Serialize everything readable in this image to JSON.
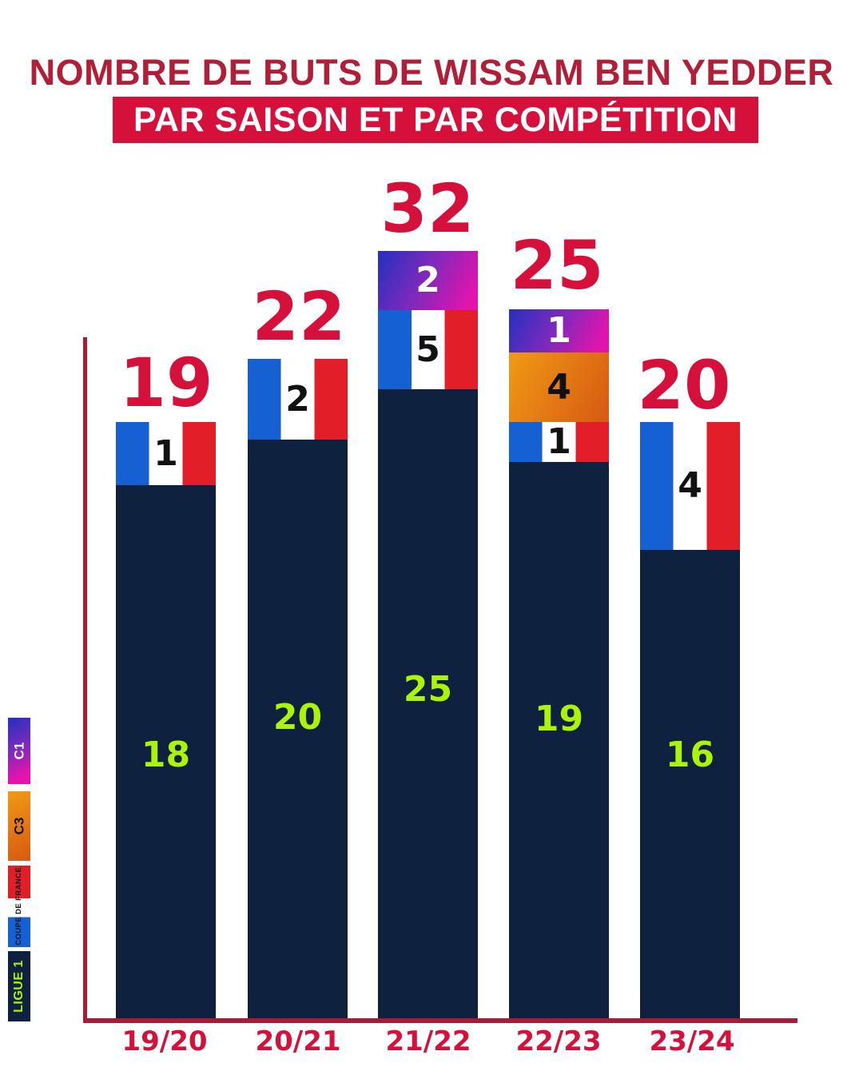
{
  "title": "NOMBRE DE BUTS DE WISSAM BEN YEDDER",
  "subtitle": "PAR SAISON ET PAR COMPÉTITION",
  "legend": {
    "c1": "C1",
    "c3": "C3",
    "coupe": "COUPE DE FRANCE",
    "ligue1": "LIGUE 1"
  },
  "bars": {
    "s1920": {
      "label": "19/20",
      "total": "19",
      "coupe": "1",
      "ligue1": "18"
    },
    "s2021": {
      "label": "20/21",
      "total": "22",
      "coupe": "2",
      "ligue1": "20"
    },
    "s2122": {
      "label": "21/22",
      "total": "32",
      "c1": "2",
      "coupe": "5",
      "ligue1": "25"
    },
    "s2223": {
      "label": "22/23",
      "total": "25",
      "c1": "1",
      "c3": "4",
      "coupe": "1",
      "ligue1": "19"
    },
    "s2324": {
      "label": "23/24",
      "total": "20",
      "coupe": "4",
      "ligue1": "16"
    }
  },
  "chart_data": {
    "type": "bar",
    "subtype": "stacked",
    "title": "NOMBRE DE BUTS DE WISSAM BEN YEDDER",
    "subtitle": "PAR SAISON ET PAR COMPÉTITION",
    "categories": [
      "19/20",
      "20/21",
      "21/22",
      "22/23",
      "23/24"
    ],
    "series": [
      {
        "name": "LIGUE 1",
        "values": [
          18,
          20,
          25,
          19,
          16
        ],
        "color": "#0E2240",
        "label_color": "#ABF308"
      },
      {
        "name": "COUPE DE FRANCE",
        "values": [
          1,
          2,
          5,
          1,
          4
        ],
        "color": "french-flag (#1560D2/#FFFFFF/#E21E28)",
        "label_color": "#111111"
      },
      {
        "name": "C3",
        "values": [
          0,
          0,
          0,
          4,
          0
        ],
        "color": "gradient #F09A15→#D85C12",
        "label_color": "#111111"
      },
      {
        "name": "C1",
        "values": [
          0,
          0,
          2,
          1,
          0
        ],
        "color": "gradient #2330C0→#E214AD",
        "label_color": "#FFFFFF"
      }
    ],
    "totals": [
      19,
      22,
      32,
      25,
      20
    ],
    "xlabel": "",
    "ylabel": "",
    "grid": false,
    "legend_position": "left-vertical",
    "legend_order_bottom_to_top": [
      "LIGUE 1",
      "COUPE DE FRANCE",
      "C3",
      "C1"
    ],
    "axis_color": "#A81C38",
    "total_label_color": "#D5113B",
    "category_label_color": "#D5113B"
  },
  "colors": {
    "background": "#FFFFFF",
    "title_red": "#B01F37",
    "banner_red": "#D5113B",
    "crimson_labels": "#D5113B",
    "axis_red": "#A81C38",
    "navy": "#0E2240",
    "lime": "#ABF308",
    "flag_blue": "#1560D2",
    "flag_red": "#E21E28",
    "c1_gradient_from": "#2330C0",
    "c1_gradient_to": "#E214AD",
    "c3_gradient_from": "#F09A15",
    "c3_gradient_to": "#D85C12"
  }
}
